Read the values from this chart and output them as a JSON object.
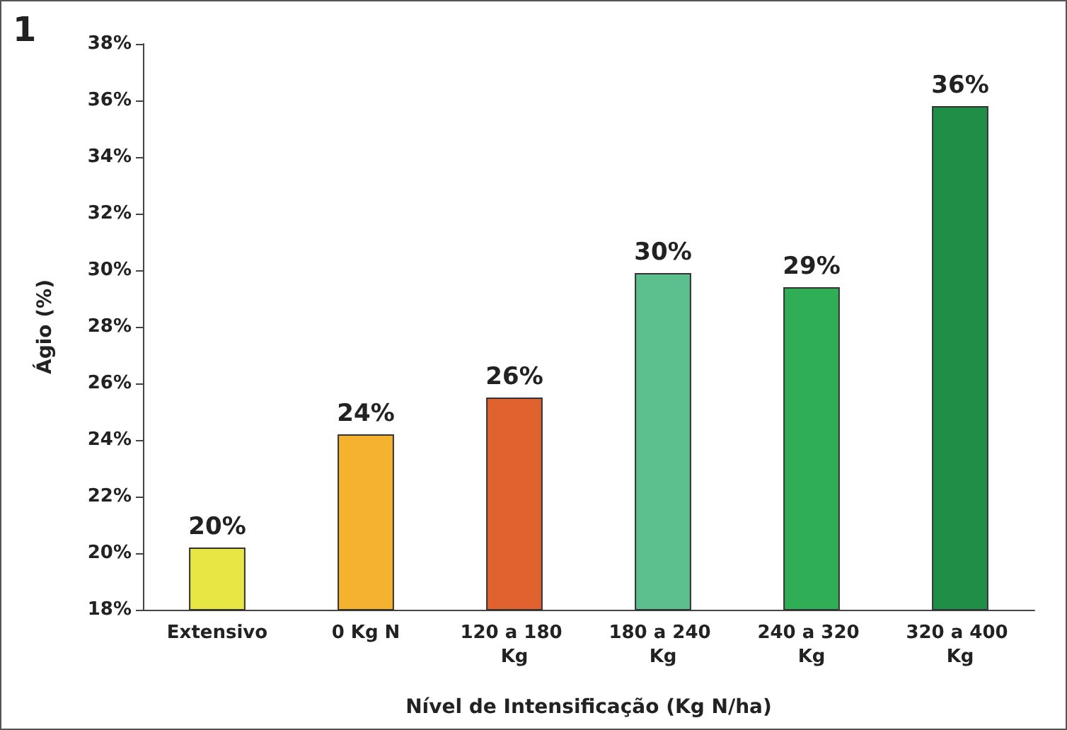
{
  "chart_data": {
    "type": "bar",
    "xlabel": "Nível de Intensificação (Kg N/ha)",
    "ylabel": "Ágio (%)",
    "annotations": [
      "1"
    ],
    "categories": [
      "Extensivo",
      "0 Kg N",
      "120 a 180 Kg",
      "180 a 240 Kg",
      "240 a 320 Kg",
      "320 a 400 Kg"
    ],
    "values": [
      20.2,
      24.2,
      25.5,
      29.9,
      29.4,
      35.8
    ],
    "value_labels": [
      "20%",
      "24%",
      "26%",
      "30%",
      "29%",
      "36%"
    ],
    "colors": [
      "#e6e645",
      "#f5b22f",
      "#e0622f",
      "#5bbf8e",
      "#2fae55",
      "#1f8f48"
    ],
    "ylim": [
      18,
      38
    ],
    "yticks": [
      {
        "value": 18,
        "label": "18%"
      },
      {
        "value": 20,
        "label": "20%"
      },
      {
        "value": 22,
        "label": "22%"
      },
      {
        "value": 24,
        "label": "24%"
      },
      {
        "value": 26,
        "label": "26%"
      },
      {
        "value": 28,
        "label": "28%"
      },
      {
        "value": 30,
        "label": "30%"
      },
      {
        "value": 32,
        "label": "32%"
      },
      {
        "value": 34,
        "label": "34%"
      },
      {
        "value": 36,
        "label": "36%"
      },
      {
        "value": 38,
        "label": "38%"
      }
    ],
    "grid": false
  }
}
